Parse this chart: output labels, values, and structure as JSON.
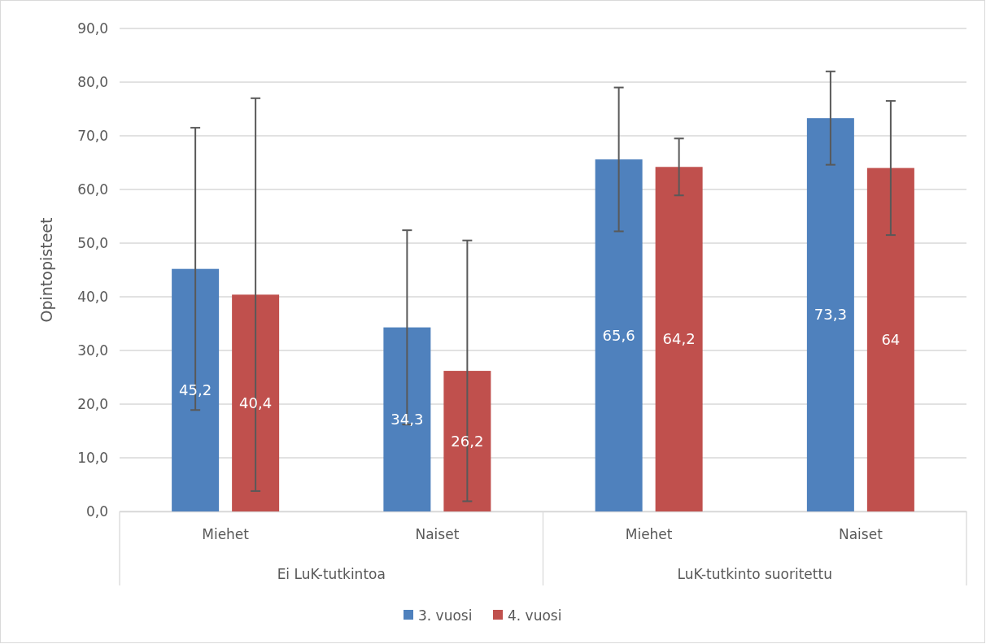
{
  "chart_data": {
    "type": "bar",
    "ylabel": "Opintopisteet",
    "categories": [
      "Miehet",
      "Naiset",
      "Miehet",
      "Naiset"
    ],
    "annotations": [
      "Ei LuK-tutkintoa",
      "LuK-tutkinto suoritettu"
    ],
    "series": [
      {
        "name": "3. vuosi",
        "color": "#4f81bd",
        "values": [
          45.2,
          34.3,
          65.6,
          73.3
        ],
        "errors": [
          26.3,
          18.1,
          13.4,
          8.7
        ],
        "value_labels": [
          "45,2",
          "34,3",
          "65,6",
          "73,3"
        ]
      },
      {
        "name": "4. vuosi",
        "color": "#c0504d",
        "values": [
          40.4,
          26.2,
          64.2,
          64
        ],
        "errors": [
          36.6,
          24.3,
          5.3,
          12.5
        ],
        "value_labels": [
          "40,4",
          "26,2",
          "64,2",
          "64"
        ]
      }
    ],
    "ylim": [
      0,
      90
    ],
    "yticks": [
      {
        "value": 0,
        "label": "0,0"
      },
      {
        "value": 10,
        "label": "10,0"
      },
      {
        "value": 20,
        "label": "20,0"
      },
      {
        "value": 30,
        "label": "30,0"
      },
      {
        "value": 40,
        "label": "40,0"
      },
      {
        "value": 50,
        "label": "50,0"
      },
      {
        "value": 60,
        "label": "60,0"
      },
      {
        "value": 70,
        "label": "70,0"
      },
      {
        "value": 80,
        "label": "80,0"
      },
      {
        "value": 90,
        "label": "90,0"
      }
    ],
    "grid": "y",
    "legend": "bottom"
  }
}
